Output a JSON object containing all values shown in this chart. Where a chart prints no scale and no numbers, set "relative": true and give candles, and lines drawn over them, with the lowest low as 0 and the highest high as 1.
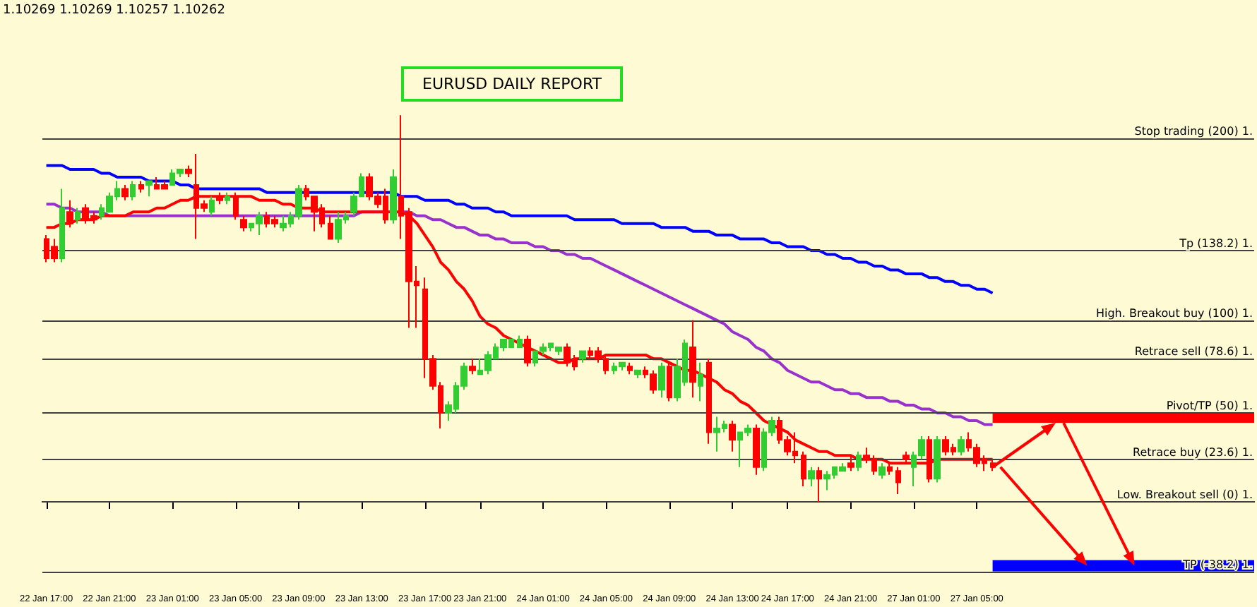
{
  "chart_data": {
    "type": "candlestick",
    "title": "EURUSD DAILY REPORT",
    "annotations": [
      "1.10269 1.10269 1.10257 1.10262"
    ],
    "relative": true,
    "marker": "none",
    "categories": [
      "22 Jan 17:00",
      null,
      null,
      null,
      null,
      null,
      null,
      null,
      "22 Jan 21:00",
      null,
      null,
      null,
      null,
      null,
      null,
      null,
      "23 Jan 01:00",
      null,
      null,
      null,
      null,
      null,
      null,
      null,
      "23 Jan 05:00",
      null,
      null,
      null,
      null,
      null,
      null,
      null,
      "23 Jan 09:00",
      null,
      null,
      null,
      null,
      null,
      null,
      null,
      "23 Jan 13:00",
      null,
      null,
      null,
      null,
      null,
      null,
      null,
      "23 Jan 17:00",
      null,
      null,
      null,
      null,
      null,
      null,
      "23 Jan 21:00",
      null,
      null,
      null,
      null,
      null,
      null,
      null,
      "24 Jan 01:00",
      null,
      null,
      null,
      null,
      null,
      null,
      null,
      "24 Jan 05:00",
      null,
      null,
      null,
      null,
      null,
      null,
      null,
      "24 Jan 09:00",
      null,
      null,
      null,
      null,
      null,
      null,
      null,
      "24 Jan 13:00",
      null,
      null,
      null,
      null,
      null,
      null,
      "24 Jan 17:00",
      null,
      null,
      null,
      null,
      null,
      null,
      null,
      "24 Jan 21:00",
      null,
      null,
      null,
      null,
      null,
      null,
      null,
      "27 Jan 01:00",
      null,
      null,
      null,
      null,
      null,
      null,
      null,
      "27 Jan 05:00",
      null,
      null
    ],
    "ohlc": [
      [
        0.68,
        0.69,
        0.62,
        0.63
      ],
      [
        0.66,
        0.68,
        0.62,
        0.63
      ],
      [
        0.63,
        0.81,
        0.62,
        0.76
      ],
      [
        0.75,
        0.78,
        0.71,
        0.72
      ],
      [
        0.73,
        0.76,
        0.72,
        0.75
      ],
      [
        0.76,
        0.77,
        0.72,
        0.73
      ],
      [
        0.74,
        0.75,
        0.72,
        0.73
      ],
      [
        0.74,
        0.77,
        0.73,
        0.76
      ],
      [
        0.75,
        0.8,
        0.75,
        0.79
      ],
      [
        0.79,
        0.83,
        0.78,
        0.81
      ],
      [
        0.81,
        0.82,
        0.78,
        0.79
      ],
      [
        0.79,
        0.83,
        0.78,
        0.82
      ],
      [
        0.82,
        0.83,
        0.8,
        0.81
      ],
      [
        0.82,
        0.83,
        0.79,
        0.83
      ],
      [
        0.82,
        0.84,
        0.81,
        0.81
      ],
      [
        0.82,
        0.83,
        0.81,
        0.81
      ],
      [
        0.82,
        0.86,
        0.82,
        0.85
      ],
      [
        0.85,
        0.86,
        0.84,
        0.86
      ],
      [
        0.86,
        0.87,
        0.84,
        0.85
      ],
      [
        0.82,
        0.9,
        0.68,
        0.76
      ],
      [
        0.77,
        0.78,
        0.75,
        0.76
      ],
      [
        0.75,
        0.79,
        0.74,
        0.78
      ],
      [
        0.79,
        0.8,
        0.77,
        0.78
      ],
      [
        0.78,
        0.8,
        0.77,
        0.79
      ],
      [
        0.79,
        0.8,
        0.73,
        0.74
      ],
      [
        0.73,
        0.74,
        0.7,
        0.71
      ],
      [
        0.71,
        0.72,
        0.7,
        0.72
      ],
      [
        0.72,
        0.75,
        0.69,
        0.74
      ],
      [
        0.74,
        0.75,
        0.71,
        0.72
      ],
      [
        0.73,
        0.74,
        0.71,
        0.72
      ],
      [
        0.71,
        0.74,
        0.7,
        0.72
      ],
      [
        0.72,
        0.75,
        0.71,
        0.74
      ],
      [
        0.74,
        0.82,
        0.73,
        0.81
      ],
      [
        0.81,
        0.82,
        0.78,
        0.79
      ],
      [
        0.79,
        0.79,
        0.7,
        0.75
      ],
      [
        0.76,
        0.77,
        0.71,
        0.72
      ],
      [
        0.72,
        0.74,
        0.68,
        0.68
      ],
      [
        0.68,
        0.75,
        0.67,
        0.73
      ],
      [
        0.73,
        0.75,
        0.72,
        0.74
      ],
      [
        0.75,
        0.8,
        0.74,
        0.79
      ],
      [
        0.79,
        0.85,
        0.79,
        0.84
      ],
      [
        0.84,
        0.85,
        0.78,
        0.79
      ],
      [
        0.79,
        0.8,
        0.76,
        0.77
      ],
      [
        0.79,
        0.81,
        0.72,
        0.73
      ],
      [
        0.73,
        0.86,
        0.72,
        0.84
      ],
      [
        0.79,
        1.0,
        0.68,
        0.74
      ],
      [
        0.75,
        0.76,
        0.45,
        0.57
      ],
      [
        0.57,
        0.61,
        0.45,
        0.56
      ],
      [
        0.55,
        0.58,
        0.32,
        0.37
      ],
      [
        0.37,
        0.38,
        0.29,
        0.3
      ],
      [
        0.3,
        0.31,
        0.19,
        0.23
      ],
      [
        0.23,
        0.26,
        0.21,
        0.25
      ],
      [
        0.24,
        0.31,
        0.23,
        0.3
      ],
      [
        0.3,
        0.36,
        0.29,
        0.35
      ],
      [
        0.35,
        0.37,
        0.33,
        0.34
      ],
      [
        0.33,
        0.37,
        0.33,
        0.34
      ],
      [
        0.34,
        0.39,
        0.33,
        0.38
      ],
      [
        0.37,
        0.41,
        0.37,
        0.4
      ],
      [
        0.4,
        0.42,
        0.39,
        0.42
      ],
      [
        0.4,
        0.42,
        0.4,
        0.42
      ],
      [
        0.4,
        0.43,
        0.4,
        0.42
      ],
      [
        0.42,
        0.43,
        0.35,
        0.36
      ],
      [
        0.36,
        0.39,
        0.35,
        0.39
      ],
      [
        0.39,
        0.41,
        0.38,
        0.4
      ],
      [
        0.4,
        0.41,
        0.39,
        0.41
      ],
      [
        0.39,
        0.4,
        0.38,
        0.4
      ],
      [
        0.4,
        0.41,
        0.35,
        0.36
      ],
      [
        0.37,
        0.38,
        0.34,
        0.35
      ],
      [
        0.37,
        0.39,
        0.36,
        0.39
      ],
      [
        0.39,
        0.4,
        0.37,
        0.38
      ],
      [
        0.39,
        0.4,
        0.36,
        0.37
      ],
      [
        0.37,
        0.38,
        0.33,
        0.34
      ],
      [
        0.34,
        0.36,
        0.33,
        0.35
      ],
      [
        0.35,
        0.36,
        0.34,
        0.36
      ],
      [
        0.35,
        0.36,
        0.33,
        0.34
      ],
      [
        0.33,
        0.34,
        0.32,
        0.34
      ],
      [
        0.34,
        0.35,
        0.32,
        0.33
      ],
      [
        0.33,
        0.34,
        0.28,
        0.29
      ],
      [
        0.29,
        0.36,
        0.27,
        0.35
      ],
      [
        0.35,
        0.36,
        0.26,
        0.27
      ],
      [
        0.27,
        0.37,
        0.26,
        0.35
      ],
      [
        0.31,
        0.42,
        0.3,
        0.41
      ],
      [
        0.4,
        0.47,
        0.27,
        0.31
      ],
      [
        0.3,
        0.36,
        0.26,
        0.33
      ],
      [
        0.36,
        0.37,
        0.15,
        0.18
      ],
      [
        0.18,
        0.22,
        0.13,
        0.19
      ],
      [
        0.19,
        0.21,
        0.18,
        0.2
      ],
      [
        0.2,
        0.21,
        0.13,
        0.16
      ],
      [
        0.16,
        0.18,
        0.09,
        0.18
      ],
      [
        0.18,
        0.2,
        0.17,
        0.19
      ],
      [
        0.19,
        0.2,
        0.07,
        0.09
      ],
      [
        0.09,
        0.19,
        0.08,
        0.18
      ],
      [
        0.18,
        0.22,
        0.17,
        0.21
      ],
      [
        0.21,
        0.22,
        0.15,
        0.16
      ],
      [
        0.16,
        0.17,
        0.12,
        0.13
      ],
      [
        0.13,
        0.18,
        0.1,
        0.12
      ],
      [
        0.12,
        0.13,
        0.04,
        0.06
      ],
      [
        0.06,
        0.09,
        0.04,
        0.08
      ],
      [
        0.08,
        0.09,
        0,
        0.06
      ],
      [
        0.06,
        0.08,
        0.03,
        0.07
      ],
      [
        0.07,
        0.09,
        0.06,
        0.09
      ],
      [
        0.08,
        0.1,
        0.08,
        0.09
      ],
      [
        0.1,
        0.12,
        0.08,
        0.09
      ],
      [
        0.09,
        0.13,
        0.08,
        0.12
      ],
      [
        0.12,
        0.14,
        0.1,
        0.11
      ],
      [
        0.11,
        0.12,
        0.07,
        0.08
      ],
      [
        0.07,
        0.1,
        0.06,
        0.09
      ],
      [
        0.09,
        0.1,
        0.07,
        0.08
      ],
      [
        0.08,
        0.09,
        0.02,
        0.05
      ],
      [
        0.12,
        0.13,
        0.1,
        0.11
      ],
      [
        0.09,
        0.13,
        0.04,
        0.12
      ],
      [
        0.12,
        0.17,
        0.11,
        0.16
      ],
      [
        0.16,
        0.17,
        0.05,
        0.06
      ],
      [
        0.06,
        0.17,
        0.05,
        0.16
      ],
      [
        0.16,
        0.17,
        0.12,
        0.13
      ],
      [
        0.14,
        0.15,
        0.12,
        0.13
      ],
      [
        0.13,
        0.17,
        0.12,
        0.16
      ],
      [
        0.16,
        0.18,
        0.13,
        0.14
      ],
      [
        0.14,
        0.15,
        0.09,
        0.1
      ],
      [
        0.11,
        0.12,
        0.08,
        0.1
      ],
      [
        0.1,
        0.11,
        0.08,
        0.09
      ]
    ],
    "series": [
      {
        "type": "line",
        "color": "#0000ff",
        "values": [
          0.87,
          0.87,
          0.87,
          0.86,
          0.86,
          0.86,
          0.86,
          0.85,
          0.85,
          0.84,
          0.84,
          0.84,
          0.84,
          0.83,
          0.83,
          0.83,
          0.83,
          0.82,
          0.82,
          0.81,
          0.81,
          0.81,
          0.81,
          0.81,
          0.81,
          0.81,
          0.81,
          0.81,
          0.8,
          0.8,
          0.8,
          0.8,
          0.8,
          0.8,
          0.8,
          0.8,
          0.8,
          0.8,
          0.8,
          0.8,
          0.8,
          0.8,
          0.8,
          0.8,
          0.8,
          0.79,
          0.79,
          0.79,
          0.78,
          0.78,
          0.78,
          0.78,
          0.77,
          0.77,
          0.76,
          0.76,
          0.76,
          0.75,
          0.75,
          0.74,
          0.74,
          0.74,
          0.74,
          0.74,
          0.74,
          0.74,
          0.74,
          0.73,
          0.73,
          0.73,
          0.73,
          0.73,
          0.73,
          0.72,
          0.72,
          0.72,
          0.72,
          0.72,
          0.71,
          0.71,
          0.71,
          0.71,
          0.7,
          0.7,
          0.7,
          0.69,
          0.69,
          0.69,
          0.68,
          0.68,
          0.68,
          0.68,
          0.67,
          0.67,
          0.66,
          0.66,
          0.66,
          0.65,
          0.65,
          0.64,
          0.64,
          0.63,
          0.63,
          0.62,
          0.62,
          0.61,
          0.61,
          0.6,
          0.6,
          0.59,
          0.59,
          0.59,
          0.58,
          0.58,
          0.57,
          0.57,
          0.56,
          0.56,
          0.55,
          0.55,
          0.54
        ]
      },
      {
        "type": "line",
        "color": "#9932cc",
        "values": [
          0.77,
          0.77,
          0.76,
          0.76,
          0.75,
          0.75,
          0.75,
          0.75,
          0.74,
          0.74,
          0.74,
          0.74,
          0.74,
          0.74,
          0.74,
          0.74,
          0.74,
          0.74,
          0.74,
          0.74,
          0.74,
          0.74,
          0.74,
          0.74,
          0.74,
          0.74,
          0.74,
          0.74,
          0.74,
          0.74,
          0.74,
          0.74,
          0.74,
          0.74,
          0.74,
          0.74,
          0.74,
          0.74,
          0.74,
          0.74,
          0.75,
          0.75,
          0.75,
          0.75,
          null,
          0.75,
          0.75,
          0.74,
          0.74,
          0.73,
          0.73,
          0.72,
          0.71,
          0.71,
          0.7,
          0.69,
          0.69,
          0.68,
          0.68,
          0.67,
          0.67,
          0.67,
          0.66,
          0.66,
          0.65,
          0.65,
          0.64,
          0.64,
          0.63,
          0.63,
          0.62,
          0.61,
          0.6,
          0.59,
          0.58,
          0.57,
          0.56,
          0.55,
          0.54,
          0.53,
          0.52,
          0.51,
          0.5,
          0.49,
          0.48,
          0.47,
          0.46,
          0.44,
          0.43,
          0.42,
          0.4,
          0.39,
          0.37,
          0.36,
          0.34,
          0.33,
          0.32,
          0.31,
          0.31,
          0.3,
          0.29,
          0.29,
          0.28,
          0.28,
          0.27,
          0.27,
          0.27,
          0.26,
          0.26,
          0.25,
          0.25,
          0.24,
          0.24,
          0.23,
          0.23,
          0.22,
          0.22,
          0.21,
          0.21,
          0.2,
          0.2
        ]
      },
      {
        "type": "line",
        "color": "#ff0000",
        "values": [
          0.71,
          0.71,
          0.72,
          0.72,
          0.73,
          0.73,
          0.73,
          0.74,
          0.74,
          0.74,
          0.74,
          0.75,
          0.75,
          0.75,
          0.76,
          0.76,
          0.77,
          0.78,
          0.78,
          0.79,
          0.79,
          0.79,
          0.79,
          0.79,
          0.79,
          0.79,
          0.79,
          0.78,
          0.78,
          0.78,
          0.77,
          0.77,
          0.76,
          0.76,
          0.76,
          0.75,
          0.75,
          0.75,
          0.75,
          0.75,
          0.75,
          0.75,
          0.75,
          0.75,
          0.75,
          0.75,
          0.74,
          0.72,
          0.69,
          0.66,
          0.62,
          0.6,
          0.57,
          0.55,
          0.52,
          0.48,
          0.46,
          0.45,
          0.43,
          0.42,
          0.41,
          0.4,
          0.39,
          0.38,
          0.37,
          0.36,
          0.36,
          0.37,
          0.37,
          0.37,
          0.37,
          0.38,
          0.38,
          0.38,
          0.38,
          0.38,
          0.38,
          0.37,
          0.37,
          0.36,
          0.35,
          0.34,
          0.34,
          0.33,
          0.32,
          0.31,
          0.29,
          0.28,
          0.26,
          0.25,
          0.23,
          0.21,
          0.2,
          0.19,
          0.18,
          0.16,
          0.15,
          0.14,
          0.13,
          0.13,
          0.12,
          0.12,
          0.12,
          0.11,
          0.11,
          0.11,
          0.11,
          0.1,
          0.1,
          0.1,
          0.1,
          0.1,
          0.1,
          0.11,
          0.11,
          0.11,
          0.11,
          0.11,
          0.11,
          0.11,
          0.11
        ]
      }
    ],
    "ref_lines": [
      {
        "axis": "y",
        "value": 0.94,
        "label": "Stop trading (200) 1."
      },
      {
        "axis": "y",
        "value": 0.65,
        "label": "Tp (138.2) 1."
      },
      {
        "axis": "y",
        "value": 0.47,
        "label": "High. Breakout buy (100) 1."
      },
      {
        "axis": "y",
        "value": 0.37,
        "label": "Retrace sell (78.6) 1."
      },
      {
        "axis": "y",
        "value": 0.23,
        "label": "Pivot/TP (50) 1."
      },
      {
        "axis": "y",
        "value": 0.11,
        "label": "Retrace buy (23.6) 1."
      },
      {
        "axis": "y",
        "value": 0,
        "label": "Low. Breakout sell (0) 1."
      },
      {
        "axis": "y",
        "value": -0.18,
        "label": "TP (-38.2) 1."
      }
    ]
  }
}
